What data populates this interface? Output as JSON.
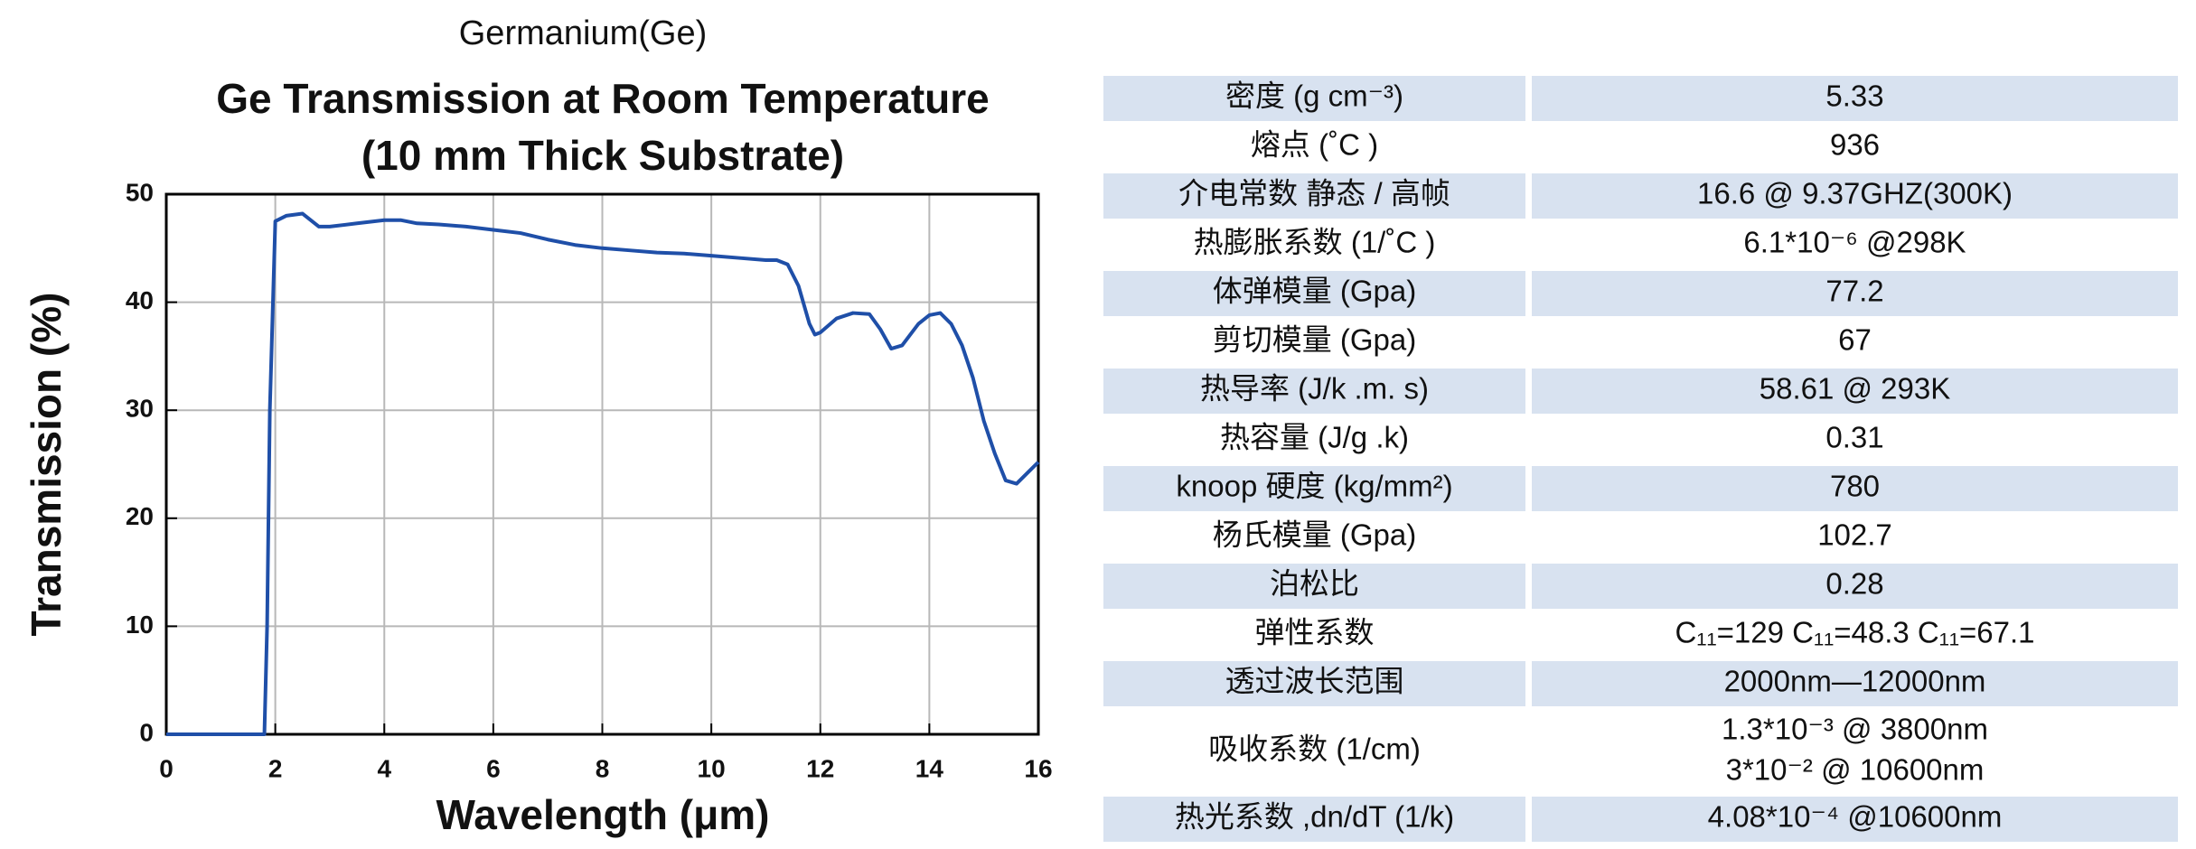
{
  "header": "Germanium(Ge)",
  "chart_data": {
    "type": "line",
    "title": [
      "Ge Transmission at Room Temperature",
      "(10 mm Thick Substrate)"
    ],
    "x_label": "Wavelength (μm)",
    "y_label": "Transmission (%)",
    "x": [
      0,
      1.8,
      1.85,
      1.9,
      2.0,
      2.2,
      2.5,
      2.8,
      3,
      3.5,
      4,
      4.3,
      4.6,
      5,
      5.5,
      6,
      6.5,
      7,
      7.5,
      8,
      8.5,
      9,
      9.5,
      10,
      10.5,
      11,
      11.2,
      11.4,
      11.6,
      11.8,
      11.9,
      12.0,
      12.3,
      12.6,
      12.9,
      13.1,
      13.3,
      13.5,
      13.8,
      14.0,
      14.2,
      14.4,
      14.6,
      14.8,
      15.0,
      15.2,
      15.4,
      15.6,
      15.8,
      16.0
    ],
    "values": [
      0,
      0,
      10,
      30,
      47.5,
      48,
      48.2,
      47,
      47,
      47.3,
      47.6,
      47.6,
      47.3,
      47.2,
      47,
      46.7,
      46.4,
      45.8,
      45.3,
      45,
      44.8,
      44.6,
      44.5,
      44.3,
      44.1,
      43.9,
      43.9,
      43.5,
      41.5,
      38,
      37,
      37.2,
      38.5,
      39,
      38.9,
      37.5,
      35.7,
      36,
      38,
      38.8,
      39,
      38,
      36,
      33,
      29,
      26,
      23.5,
      23.2,
      24.2,
      25.2
    ],
    "color": "#1f4fa8",
    "xlim": [
      0,
      16
    ],
    "xticks": [
      0,
      2,
      4,
      6,
      8,
      10,
      12,
      14,
      16
    ],
    "ylim": [
      0,
      50
    ],
    "yticks": [
      0,
      10,
      20,
      30,
      40,
      50
    ],
    "grid": true
  },
  "table": {
    "rows": [
      [
        "密度 (g cm⁻³)",
        "5.33"
      ],
      [
        "熔点 (˚C )",
        "936"
      ],
      [
        "介电常数 静态 / 高帧",
        "16.6 @ 9.37GHZ(300K)"
      ],
      [
        "热膨胀系数 (1/˚C )",
        "6.1*10⁻⁶ @298K"
      ],
      [
        "体弹模量 (Gpa)",
        "77.2"
      ],
      [
        "剪切模量 (Gpa)",
        "67"
      ],
      [
        "热导率 (J/k .m. s)",
        "58.61 @ 293K"
      ],
      [
        "热容量 (J/g .k)",
        "0.31"
      ],
      [
        "knoop 硬度 (kg/mm²)",
        "780"
      ],
      [
        "杨氏模量 (Gpa)",
        "102.7"
      ],
      [
        "泊松比",
        "0.28"
      ],
      [
        "弹性系数",
        "C₁₁=129  C₁₁=48.3    C₁₁=67.1"
      ],
      [
        "透过波长范围",
        "2000nm—12000nm"
      ],
      [
        "吸收系数 (1/cm)",
        [
          "1.3*10⁻³ @ 3800nm",
          "3*10⁻² @ 10600nm"
        ]
      ],
      [
        "热光系数 ,dn/dT (1/k)",
        "4.08*10⁻⁴ @10600nm"
      ]
    ]
  }
}
